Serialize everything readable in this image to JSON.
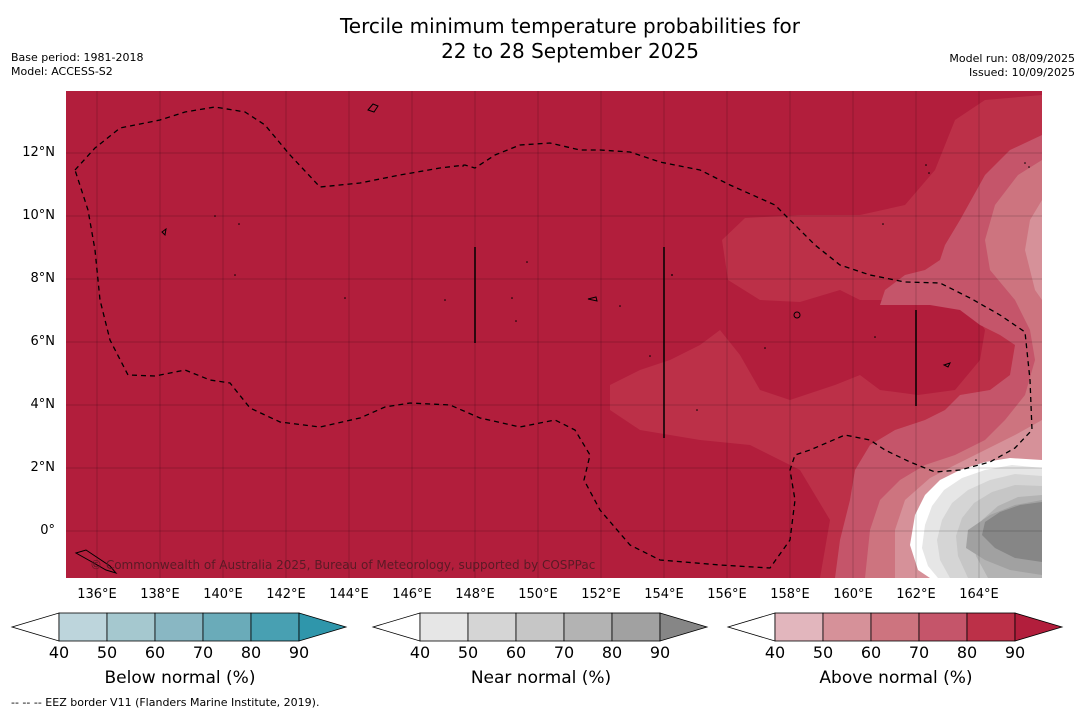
{
  "header": {
    "title_line1": "Tercile minimum temperature probabilities for",
    "title_line2": "22 to 28 September 2025",
    "base_period": "Base period: 1981-2018",
    "model": "Model: ACCESS-S2",
    "model_run": "Model run: 08/09/2025",
    "issued": "Issued: 10/09/2025"
  },
  "map": {
    "background_color": "#b21e3c",
    "copyright": "© Commonwealth of Australia 2025, Bureau of Meteorology, supported by COSPPac",
    "lat_labels": [
      "12°N",
      "10°N",
      "8°N",
      "6°N",
      "4°N",
      "2°N",
      "0°"
    ],
    "lon_labels": [
      "136°E",
      "138°E",
      "140°E",
      "142°E",
      "144°E",
      "146°E",
      "148°E",
      "150°E",
      "152°E",
      "154°E",
      "156°E",
      "158°E",
      "160°E",
      "162°E",
      "164°E"
    ]
  },
  "legend": {
    "ticks": [
      "40",
      "50",
      "60",
      "70",
      "80",
      "90"
    ],
    "below": {
      "label": "Below normal (%)",
      "colors": [
        "#ffffff",
        "#bdd5dc",
        "#a5c8cf",
        "#89b7c3",
        "#6aabb9",
        "#48a0b2",
        "#2f96ab"
      ]
    },
    "near": {
      "label": "Near normal (%)",
      "colors": [
        "#ffffff",
        "#e6e6e6",
        "#d5d5d5",
        "#c6c6c6",
        "#b3b3b3",
        "#a1a1a1",
        "#868686"
      ]
    },
    "above": {
      "label": "Above normal (%)",
      "colors": [
        "#ffffff",
        "#e2b6bd",
        "#d69199",
        "#cd747f",
        "#c5556a",
        "#bc3048",
        "#b21e3c"
      ]
    }
  },
  "footer": {
    "eez_note": "--  --  -- EEZ border V11 (Flanders Marine Institute, 2019)."
  }
}
